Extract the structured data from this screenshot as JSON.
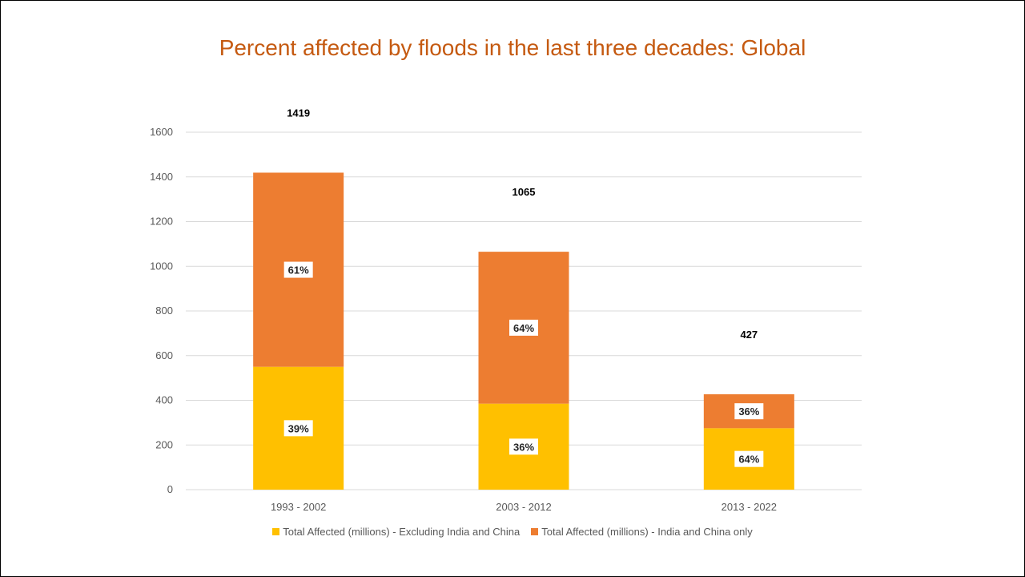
{
  "chart_data": {
    "type": "bar",
    "stacked": true,
    "title": "Percent affected by floods in the last three decades: Global",
    "categories": [
      "1993 - 2002",
      "2003 - 2012",
      "2013 - 2022"
    ],
    "series": [
      {
        "name": "Total Affected (millions) - Excluding India and China",
        "color": "#FFC000",
        "values": [
          550,
          385,
          275
        ],
        "labels": [
          "39%",
          "36%",
          "64%"
        ]
      },
      {
        "name": "Total Affected (millions) - India and China only",
        "color": "#ED7D31",
        "values": [
          869,
          680,
          152
        ],
        "labels": [
          "61%",
          "64%",
          "36%"
        ]
      }
    ],
    "totals": [
      1419,
      1065,
      427
    ],
    "yticks": [
      0,
      200,
      400,
      600,
      800,
      1000,
      1200,
      1400,
      1600
    ],
    "ylim": [
      0,
      1600
    ],
    "grid": true,
    "legend_position": "bottom"
  }
}
